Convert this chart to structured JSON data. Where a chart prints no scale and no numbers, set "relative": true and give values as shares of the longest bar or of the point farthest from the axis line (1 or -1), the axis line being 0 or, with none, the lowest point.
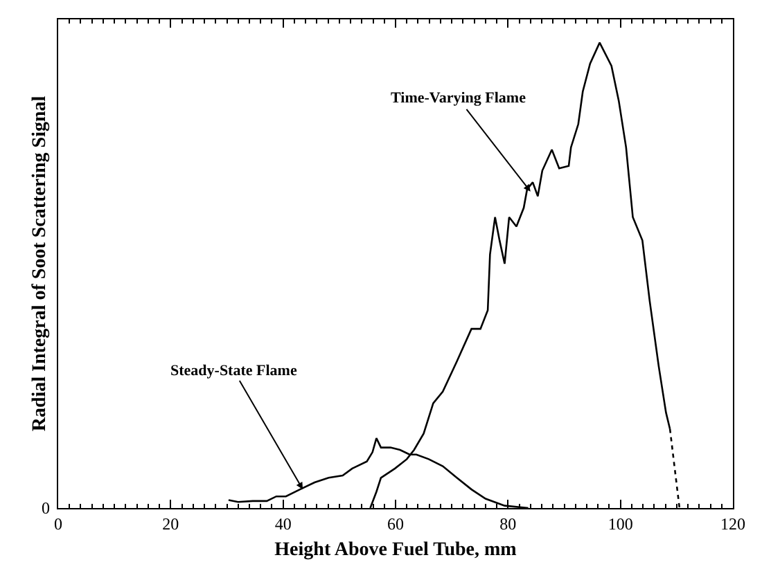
{
  "chart_data": {
    "type": "line",
    "relative": true,
    "xlabel": "Height Above Fuel Tube, mm",
    "ylabel": "Radial Integral of Soot Scattering Signal",
    "xlim": [
      0,
      120
    ],
    "xticks": [
      0,
      20,
      40,
      60,
      80,
      100,
      120
    ],
    "marker": "none",
    "series": [
      {
        "color": "#000000",
        "line_style": "solid",
        "x": [
          55.5,
          56.6,
          57.4,
          59.9,
          62.0,
          63.3,
          65.0,
          66.7,
          68.4,
          70.9,
          73.5,
          75.1,
          76.4,
          76.8,
          77.7,
          78.5,
          79.4,
          80.2,
          81.5,
          82.8,
          83.4,
          84.4,
          85.3,
          86.1,
          87.8,
          89.1,
          90.8,
          91.2,
          92.5,
          93.3,
          94.6,
          96.3,
          98.4,
          99.7,
          101.0,
          102.2,
          103.9,
          105.2,
          106.8,
          108.1,
          108.8
        ],
        "values": [
          0,
          0.035,
          0.065,
          0.085,
          0.105,
          0.125,
          0.16,
          0.225,
          0.25,
          0.315,
          0.385,
          0.385,
          0.425,
          0.545,
          0.625,
          0.575,
          0.525,
          0.625,
          0.605,
          0.645,
          0.685,
          0.7,
          0.67,
          0.725,
          0.77,
          0.73,
          0.735,
          0.775,
          0.825,
          0.895,
          0.955,
          1.0,
          0.95,
          0.875,
          0.775,
          0.625,
          0.575,
          0.445,
          0.305,
          0.205,
          0.17
        ]
      },
      {
        "color": "#000000",
        "line_style": "dotted",
        "x": [
          108.8,
          110.5
        ],
        "values": [
          0.17,
          0
        ]
      },
      {
        "color": "#000000",
        "line_style": "solid",
        "x": [
          30.3,
          32.0,
          34.6,
          37.1,
          38.8,
          40.5,
          43.0,
          45.6,
          48.1,
          50.6,
          52.3,
          54.9,
          55.9,
          56.6,
          57.4,
          59.1,
          60.8,
          62.5,
          63.7,
          65.9,
          68.4,
          70.9,
          73.5,
          76.0,
          79.4,
          83.6
        ],
        "values": [
          0.017,
          0.013,
          0.015,
          0.015,
          0.025,
          0.025,
          0.04,
          0.055,
          0.065,
          0.07,
          0.085,
          0.1,
          0.12,
          0.15,
          0.13,
          0.13,
          0.125,
          0.115,
          0.115,
          0.105,
          0.09,
          0.065,
          0.04,
          0.02,
          0.005,
          0
        ]
      }
    ],
    "annotations": [
      {
        "text": "Time-Varying Flame",
        "x": 84.0,
        "y": 0.68
      },
      {
        "text": "Steady-State Flame",
        "x": 43.5,
        "y": 0.04
      },
      "0"
    ]
  }
}
